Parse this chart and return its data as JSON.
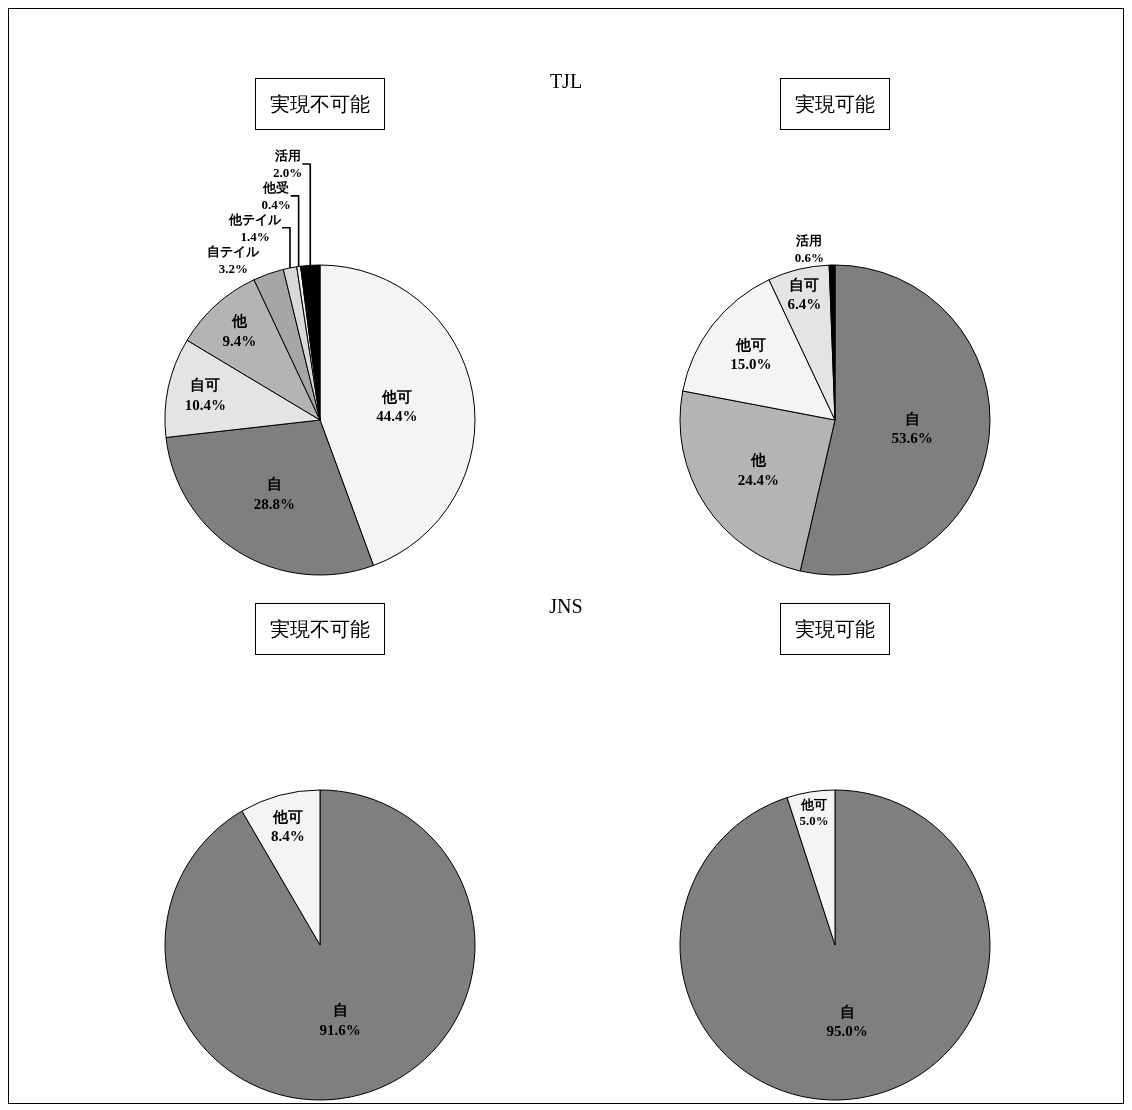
{
  "chart_data": [
    {
      "type": "pie",
      "title": "実現不可能",
      "annotations": [
        "TJL"
      ],
      "categories": [
        "他可",
        "自",
        "自可",
        "他",
        "自テイル",
        "他テイル",
        "他受",
        "活用"
      ],
      "values": [
        44.4,
        28.8,
        10.4,
        9.4,
        3.2,
        1.4,
        0.4,
        2.0
      ],
      "value_labels": [
        "44.4%",
        "28.8%",
        "10.4%",
        "9.4%",
        "3.2%",
        "1.4%",
        "0.4%",
        "2.0%"
      ],
      "colors": [
        "#f4f4f4",
        "#7f7f7f",
        "#e4e4e4",
        "#b4b4b4",
        "#a6a6a6",
        "#d9d9d9",
        "#f2f2f2",
        "#000000"
      ]
    },
    {
      "type": "pie",
      "title": "実現可能",
      "categories": [
        "自",
        "他",
        "他可",
        "自可",
        "活用"
      ],
      "values": [
        53.6,
        24.4,
        15.0,
        6.4,
        0.6
      ],
      "value_labels": [
        "53.6%",
        "24.4%",
        "15.0%",
        "6.4%",
        "0.6%"
      ],
      "colors": [
        "#7f7f7f",
        "#b4b4b4",
        "#f4f4f4",
        "#e4e4e4",
        "#000000"
      ]
    },
    {
      "type": "pie",
      "title": "実現不可能",
      "annotations": [
        "JNS"
      ],
      "categories": [
        "自",
        "他可"
      ],
      "values": [
        91.6,
        8.4
      ],
      "value_labels": [
        "91.6%",
        "8.4%"
      ],
      "colors": [
        "#7f7f7f",
        "#f4f4f4"
      ]
    },
    {
      "type": "pie",
      "title": "実現可能",
      "categories": [
        "自",
        "他可"
      ],
      "values": [
        95.0,
        5.0
      ],
      "value_labels": [
        "95.0%",
        "5.0%"
      ],
      "colors": [
        "#7f7f7f",
        "#f4f4f4"
      ]
    }
  ]
}
